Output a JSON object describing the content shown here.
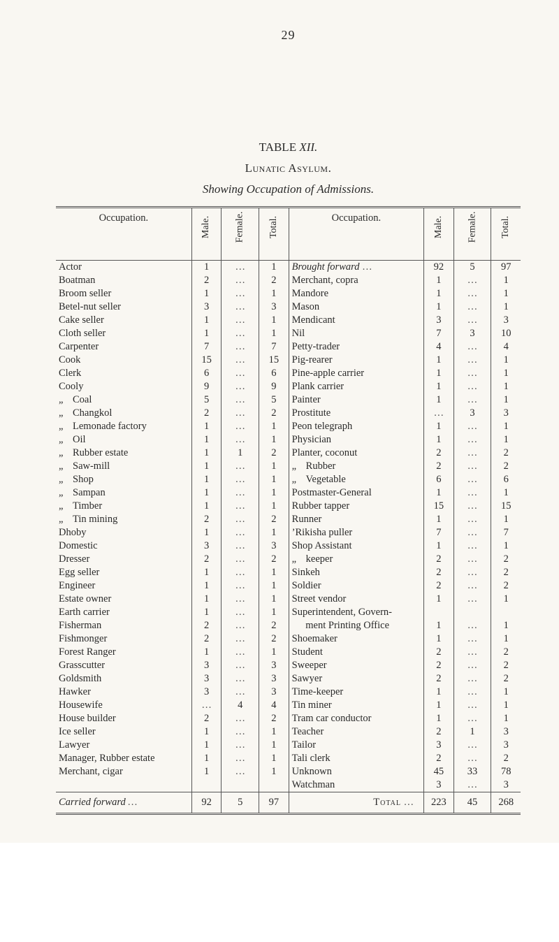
{
  "page_number": "29",
  "table_label_prefix": "TABLE",
  "table_label_roman": "XII.",
  "section_title": "Lunatic Asylum.",
  "subtitle": "Showing Occupation of Admissions.",
  "headers": {
    "occupation": "Occupation.",
    "male": "Male.",
    "female": "Female.",
    "total": "Total."
  },
  "brought_forward_label": "Brought forward",
  "brought_forward": {
    "male": "92",
    "female": "5",
    "total": "97"
  },
  "left_rows": [
    {
      "label": "Actor",
      "m": "1",
      "f": "...",
      "t": "1"
    },
    {
      "label": "Boatman",
      "m": "2",
      "f": "...",
      "t": "2"
    },
    {
      "label": "Broom seller",
      "m": "1",
      "f": "...",
      "t": "1"
    },
    {
      "label": "Betel-nut seller",
      "m": "3",
      "f": "...",
      "t": "3"
    },
    {
      "label": "Cake seller",
      "m": "1",
      "f": "...",
      "t": "1"
    },
    {
      "label": "Cloth seller",
      "m": "1",
      "f": "...",
      "t": "1"
    },
    {
      "label": "Carpenter",
      "m": "7",
      "f": "...",
      "t": "7"
    },
    {
      "label": "Cook",
      "m": "15",
      "f": "...",
      "t": "15"
    },
    {
      "label": "Clerk",
      "m": "6",
      "f": "...",
      "t": "6"
    },
    {
      "label": "Cooly",
      "m": "9",
      "f": "...",
      "t": "9"
    },
    {
      "label": "Coal",
      "ditto": true,
      "m": "5",
      "f": "...",
      "t": "5"
    },
    {
      "label": "Changkol",
      "ditto": true,
      "m": "2",
      "f": "...",
      "t": "2"
    },
    {
      "label": "Lemonade factory",
      "ditto": true,
      "m": "1",
      "f": "...",
      "t": "1"
    },
    {
      "label": "Oil",
      "ditto": true,
      "m": "1",
      "f": "...",
      "t": "1"
    },
    {
      "label": "Rubber estate",
      "ditto": true,
      "m": "1",
      "f": "1",
      "t": "2"
    },
    {
      "label": "Saw-mill",
      "ditto": true,
      "m": "1",
      "f": "...",
      "t": "1"
    },
    {
      "label": "Shop",
      "ditto": true,
      "m": "1",
      "f": "...",
      "t": "1"
    },
    {
      "label": "Sampan",
      "ditto": true,
      "m": "1",
      "f": "...",
      "t": "1"
    },
    {
      "label": "Timber",
      "ditto": true,
      "m": "1",
      "f": "...",
      "t": "1"
    },
    {
      "label": "Tin mining",
      "ditto": true,
      "m": "2",
      "f": "...",
      "t": "2"
    },
    {
      "label": "Dhoby",
      "m": "1",
      "f": "...",
      "t": "1"
    },
    {
      "label": "Domestic",
      "m": "3",
      "f": "...",
      "t": "3"
    },
    {
      "label": "Dresser",
      "m": "2",
      "f": "...",
      "t": "2"
    },
    {
      "label": "Egg seller",
      "m": "1",
      "f": "...",
      "t": "1"
    },
    {
      "label": "Engineer",
      "m": "1",
      "f": "...",
      "t": "1"
    },
    {
      "label": "Estate owner",
      "m": "1",
      "f": "...",
      "t": "1"
    },
    {
      "label": "Earth carrier",
      "m": "1",
      "f": "...",
      "t": "1"
    },
    {
      "label": "Fisherman",
      "m": "2",
      "f": "...",
      "t": "2"
    },
    {
      "label": "Fishmonger",
      "m": "2",
      "f": "...",
      "t": "2"
    },
    {
      "label": "Forest Ranger",
      "m": "1",
      "f": "...",
      "t": "1"
    },
    {
      "label": "Grasscutter",
      "m": "3",
      "f": "...",
      "t": "3"
    },
    {
      "label": "Goldsmith",
      "m": "3",
      "f": "...",
      "t": "3"
    },
    {
      "label": "Hawker",
      "m": "3",
      "f": "...",
      "t": "3"
    },
    {
      "label": "Housewife",
      "m": "...",
      "f": "4",
      "t": "4"
    },
    {
      "label": "House builder",
      "m": "2",
      "f": "...",
      "t": "2"
    },
    {
      "label": "Ice seller",
      "m": "1",
      "f": "...",
      "t": "1"
    },
    {
      "label": "Lawyer",
      "m": "1",
      "f": "...",
      "t": "1"
    },
    {
      "label": "Manager, Rubber estate",
      "m": "1",
      "f": "...",
      "t": "1"
    },
    {
      "label": "Merchant, cigar",
      "m": "1",
      "f": "...",
      "t": "1"
    }
  ],
  "right_rows": [
    {
      "label": "Merchant, copra",
      "m": "1",
      "f": "...",
      "t": "1"
    },
    {
      "label": "Mandore",
      "m": "1",
      "f": "...",
      "t": "1"
    },
    {
      "label": "Mason",
      "m": "1",
      "f": "...",
      "t": "1"
    },
    {
      "label": "Mendicant",
      "m": "3",
      "f": "...",
      "t": "3"
    },
    {
      "label": "Nil",
      "m": "7",
      "f": "3",
      "t": "10"
    },
    {
      "label": "Petty-trader",
      "m": "4",
      "f": "...",
      "t": "4"
    },
    {
      "label": "Pig-rearer",
      "m": "1",
      "f": "...",
      "t": "1"
    },
    {
      "label": "Pine-apple carrier",
      "m": "1",
      "f": "...",
      "t": "1"
    },
    {
      "label": "Plank carrier",
      "m": "1",
      "f": "...",
      "t": "1"
    },
    {
      "label": "Painter",
      "m": "1",
      "f": "...",
      "t": "1"
    },
    {
      "label": "Prostitute",
      "m": "...",
      "f": "3",
      "t": "3"
    },
    {
      "label": "Peon telegraph",
      "m": "1",
      "f": "...",
      "t": "1"
    },
    {
      "label": "Physician",
      "m": "1",
      "f": "...",
      "t": "1"
    },
    {
      "label": "Planter, coconut",
      "m": "2",
      "f": "...",
      "t": "2"
    },
    {
      "label": "Rubber",
      "ditto": true,
      "m": "2",
      "f": "...",
      "t": "2"
    },
    {
      "label": "Vegetable",
      "ditto": true,
      "m": "6",
      "f": "...",
      "t": "6"
    },
    {
      "label": "Postmaster-General",
      "m": "1",
      "f": "...",
      "t": "1"
    },
    {
      "label": "Rubber tapper",
      "m": "15",
      "f": "...",
      "t": "15"
    },
    {
      "label": "Runner",
      "m": "1",
      "f": "...",
      "t": "1"
    },
    {
      "label": "’Rikisha puller",
      "m": "7",
      "f": "...",
      "t": "7"
    },
    {
      "label": "Shop Assistant",
      "m": "1",
      "f": "...",
      "t": "1"
    },
    {
      "label": "keeper",
      "ditto": true,
      "m": "2",
      "f": "...",
      "t": "2"
    },
    {
      "label": "Sinkeh",
      "m": "2",
      "f": "...",
      "t": "2"
    },
    {
      "label": "Soldier",
      "m": "2",
      "f": "...",
      "t": "2"
    },
    {
      "label": "Street vendor",
      "m": "1",
      "f": "...",
      "t": "1"
    },
    {
      "label": "Superintendent, Govern-",
      "m": "",
      "f": "",
      "t": ""
    },
    {
      "label": "  ment Printing Office",
      "indent2": true,
      "m": "1",
      "f": "...",
      "t": "1"
    },
    {
      "label": "Shoemaker",
      "m": "1",
      "f": "...",
      "t": "1"
    },
    {
      "label": "Student",
      "m": "2",
      "f": "...",
      "t": "2"
    },
    {
      "label": "Sweeper",
      "m": "2",
      "f": "...",
      "t": "2"
    },
    {
      "label": "Sawyer",
      "m": "2",
      "f": "...",
      "t": "2"
    },
    {
      "label": "Time-keeper",
      "m": "1",
      "f": "...",
      "t": "1"
    },
    {
      "label": "Tin miner",
      "m": "1",
      "f": "...",
      "t": "1"
    },
    {
      "label": "Tram car conductor",
      "m": "1",
      "f": "...",
      "t": "1"
    },
    {
      "label": "Teacher",
      "m": "2",
      "f": "1",
      "t": "3"
    },
    {
      "label": "Tailor",
      "m": "3",
      "f": "...",
      "t": "3"
    },
    {
      "label": "Tali clerk",
      "m": "2",
      "f": "...",
      "t": "2"
    },
    {
      "label": "Unknown",
      "m": "45",
      "f": "33",
      "t": "78"
    },
    {
      "label": "Watchman",
      "m": "3",
      "f": "...",
      "t": "3"
    }
  ],
  "carried_forward_label": "Carried forward",
  "carried_forward": {
    "male": "92",
    "female": "5",
    "total": "97"
  },
  "total_label": "Total",
  "grand_total": {
    "male": "223",
    "female": "45",
    "total": "268"
  }
}
